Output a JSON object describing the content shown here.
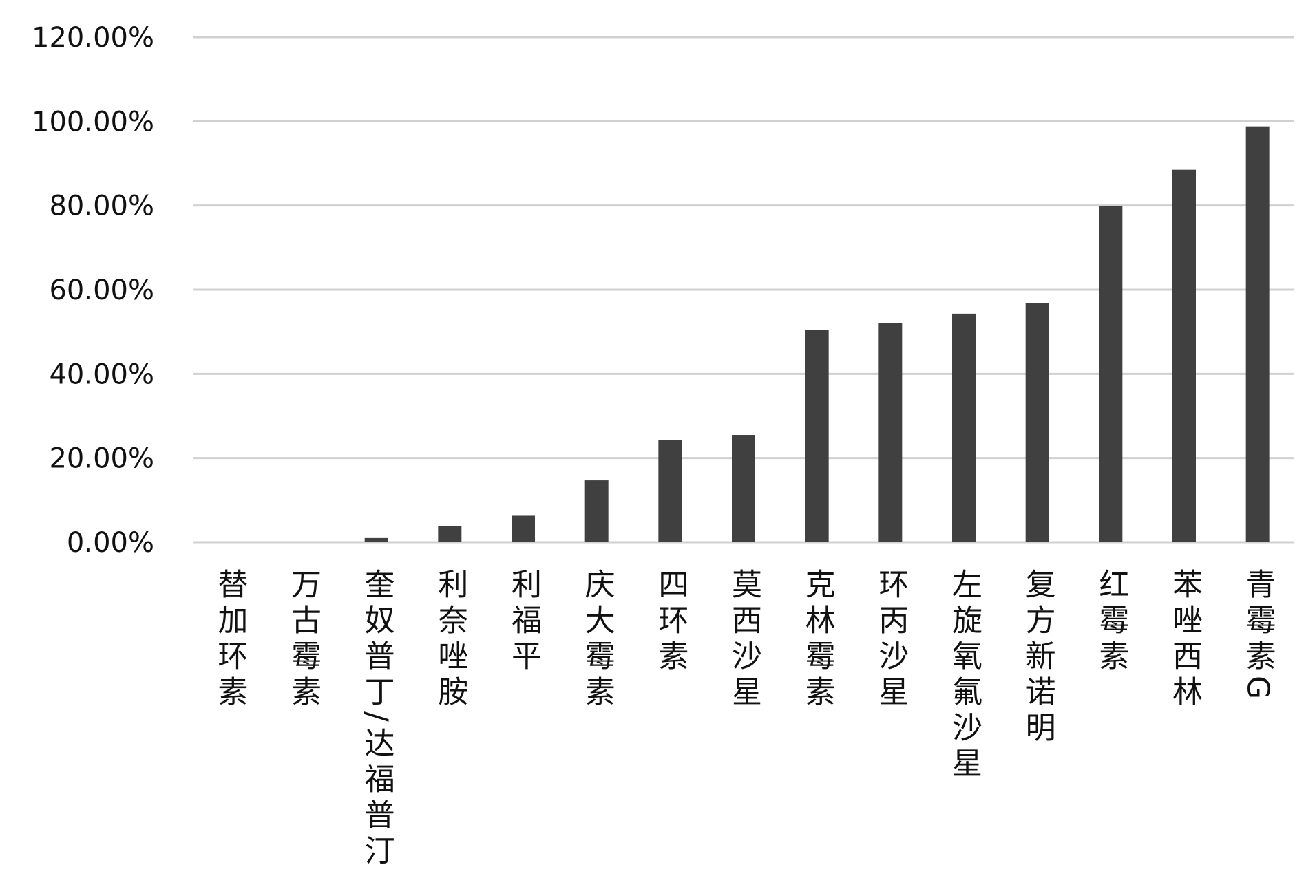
{
  "chart_data": {
    "type": "bar",
    "title": "",
    "xlabel": "",
    "ylabel": "",
    "ylim": [
      0,
      120
    ],
    "y_ticks": [
      "0.00%",
      "20.00%",
      "40.00%",
      "60.00%",
      "80.00%",
      "100.00%",
      "120.00%"
    ],
    "grid": true,
    "legend": "none",
    "bar_color": "#404040",
    "grid_color": "#d0d0d0",
    "categories": [
      "替加环素",
      "万古霉素",
      "奎奴普丁/达福普汀",
      "利奈唑胺",
      "利福平",
      "庆大霉素",
      "四环素",
      "莫西沙星",
      "克林霉素",
      "环丙沙星",
      "左旋氧氟沙星",
      "复方新诺明",
      "红霉素",
      "苯唑西林",
      "青霉素G"
    ],
    "values": [
      0,
      0,
      1.0,
      3.8,
      6.3,
      14.7,
      24.2,
      25.5,
      50.5,
      52.1,
      54.3,
      56.8,
      79.8,
      88.5,
      98.8
    ]
  }
}
